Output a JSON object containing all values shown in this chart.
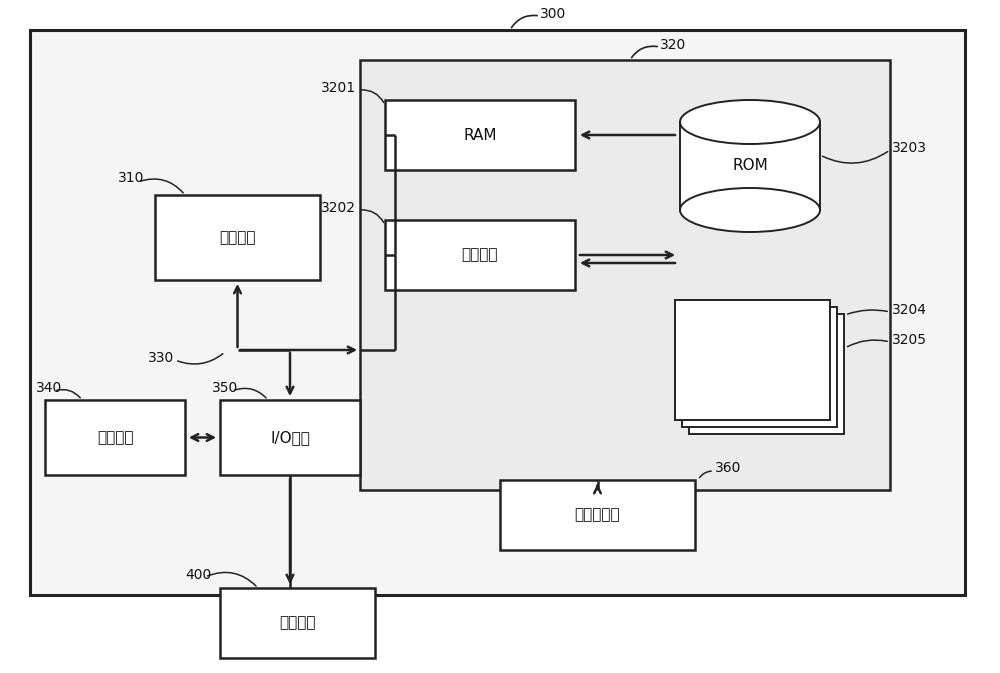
{
  "bg_color": "#ffffff",
  "outer_bg": "#f5f5f5",
  "inner_bg": "#ebebeb",
  "edge_color": "#222222",
  "text_color": "#111111",
  "label_300": "300",
  "label_310": "310",
  "label_320": "320",
  "label_330": "330",
  "label_340": "340",
  "label_350": "350",
  "label_360": "360",
  "label_400": "400",
  "label_3201": "3201",
  "label_3202": "3202",
  "label_3203": "3203",
  "label_3204": "3204",
  "label_3205": "3205",
  "txt_cpu": "处理单元",
  "txt_ram": "RAM",
  "txt_cache": "高速缓存",
  "txt_rom": "ROM",
  "txt_display": "显示单元",
  "txt_io": "I/O接口",
  "txt_net": "网络适配器",
  "txt_ext": "外部设备"
}
